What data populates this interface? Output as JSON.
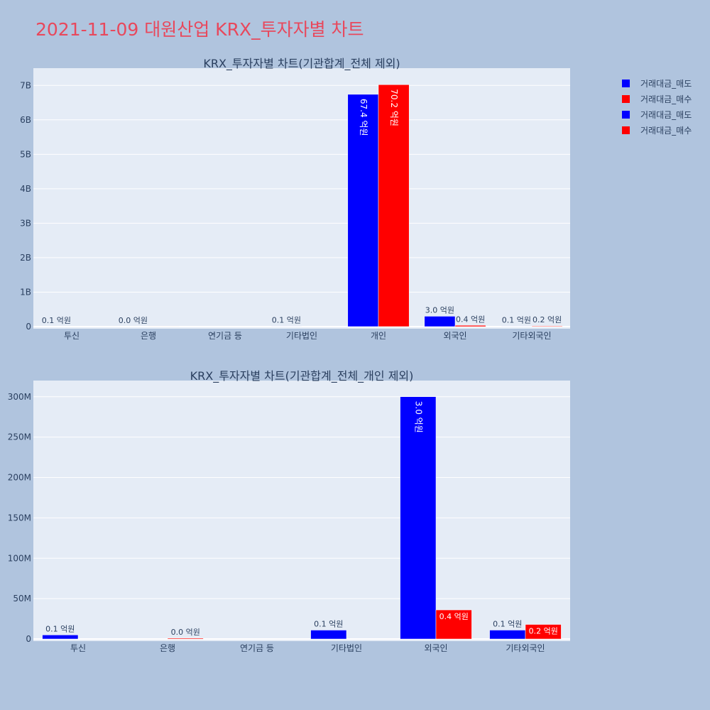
{
  "title": "2021-11-09 대원산업 KRX_투자자별 차트",
  "colors": {
    "sell": "#0000ff",
    "buy": "#ff0000",
    "plot_bg": "#e5ecf6",
    "page_bg": "#b0c4de",
    "text": "#2a3f5f"
  },
  "legend": [
    {
      "label": "거래대금_매도",
      "color": "#0000ff"
    },
    {
      "label": "거래대금_매수",
      "color": "#ff0000"
    },
    {
      "label": "거래대금_매도",
      "color": "#0000ff"
    },
    {
      "label": "거래대금_매수",
      "color": "#ff0000"
    }
  ],
  "chart_data": [
    {
      "type": "bar",
      "title": "KRX_투자자별 차트(기관합계_전체 제외)",
      "categories": [
        "투신",
        "은행",
        "연기금 등",
        "기타법인",
        "개인",
        "외국인",
        "기타외국인"
      ],
      "series": [
        {
          "name": "거래대금_매도",
          "values": [
            5000000,
            0,
            0,
            11000000,
            6740000000,
            300000000,
            11000000
          ],
          "labels": [
            "0.1 억원",
            "0.0 억원",
            "",
            "0.1 억원",
            "67.4 억원",
            "3.0 억원",
            "0.1 억원"
          ]
        },
        {
          "name": "거래대금_매수",
          "values": [
            0,
            1000000,
            0,
            0,
            7020000000,
            36000000,
            18000000
          ],
          "labels": [
            "",
            "",
            "",
            "",
            "70.2 억원",
            "0.4 억원",
            "0.2 억원"
          ]
        }
      ],
      "ylim": [
        0,
        7500000000
      ],
      "yticks": [
        0,
        1000000000,
        2000000000,
        3000000000,
        4000000000,
        5000000000,
        6000000000,
        7000000000
      ],
      "yticklabels": [
        "0",
        "1B",
        "2B",
        "3B",
        "4B",
        "5B",
        "6B",
        "7B"
      ]
    },
    {
      "type": "bar",
      "title": "KRX_투자자별 차트(기관합계_전체_개인 제외)",
      "categories": [
        "투신",
        "은행",
        "연기금 등",
        "기타법인",
        "외국인",
        "기타외국인"
      ],
      "series": [
        {
          "name": "거래대금_매도",
          "values": [
            5000000,
            0,
            0,
            11000000,
            300000000,
            11000000
          ],
          "labels": [
            "0.1 억원",
            "",
            "",
            "0.1 억원",
            "3.0 억원",
            "0.1 억원"
          ]
        },
        {
          "name": "거래대금_매수",
          "values": [
            0,
            1000000,
            0,
            0,
            36000000,
            18000000
          ],
          "labels": [
            "",
            "0.0 억원",
            "",
            "",
            "0.4 억원",
            "0.2 억원"
          ]
        }
      ],
      "ylim": [
        0,
        320000000
      ],
      "yticks": [
        0,
        50000000,
        100000000,
        150000000,
        200000000,
        250000000,
        300000000
      ],
      "yticklabels": [
        "0",
        "50M",
        "100M",
        "150M",
        "200M",
        "250M",
        "300M"
      ]
    }
  ]
}
